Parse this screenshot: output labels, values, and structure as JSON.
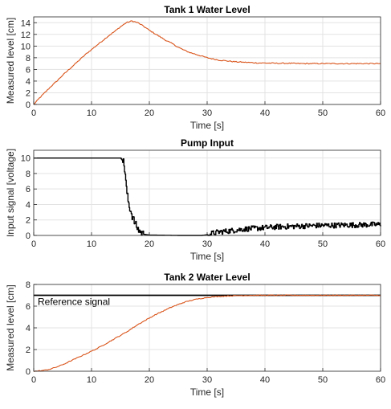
{
  "chart_data": [
    {
      "type": "line",
      "title": "Tank 1 Water Level",
      "xlabel": "Time [s]",
      "ylabel": "Measured level [cm]",
      "xlim": [
        0,
        60
      ],
      "ylim": [
        0,
        15
      ],
      "xticks": [
        0,
        10,
        20,
        30,
        40,
        50,
        60
      ],
      "yticks": [
        0,
        2,
        4,
        6,
        8,
        10,
        12,
        14
      ],
      "grid": true,
      "series": [
        {
          "color": "#d95319",
          "x": [
            0,
            1,
            2,
            3,
            4,
            5,
            6,
            7,
            8,
            9,
            10,
            11,
            12,
            13,
            14,
            15,
            16,
            17,
            18,
            19,
            20,
            21,
            22,
            23,
            24,
            25,
            26,
            27,
            28,
            29,
            30,
            31,
            32,
            33,
            34,
            35,
            36,
            37,
            38,
            39,
            40,
            42,
            44,
            46,
            48,
            50,
            52,
            54,
            56,
            58,
            60
          ],
          "y": [
            0,
            1.1,
            2.1,
            3.1,
            4.0,
            5.0,
            5.9,
            6.8,
            7.7,
            8.6,
            9.4,
            10.2,
            11.0,
            11.8,
            12.5,
            13.3,
            14.0,
            14.3,
            14.0,
            13.4,
            12.7,
            12.1,
            11.5,
            10.9,
            10.4,
            9.8,
            9.3,
            8.9,
            8.6,
            8.3,
            8.0,
            7.8,
            7.6,
            7.5,
            7.4,
            7.3,
            7.25,
            7.2,
            7.15,
            7.1,
            7.1,
            7.05,
            7.05,
            7.0,
            7.0,
            7.0,
            7.0,
            7.0,
            7.0,
            7.0,
            7.0
          ]
        }
      ]
    },
    {
      "type": "line",
      "title": "Pump Input",
      "xlabel": "Time [s]",
      "ylabel": "Input signal [voltage]",
      "xlim": [
        0,
        60
      ],
      "ylim": [
        0,
        11
      ],
      "xticks": [
        0,
        10,
        20,
        30,
        40,
        50,
        60
      ],
      "yticks": [
        0,
        2,
        4,
        6,
        8,
        10
      ],
      "grid": true,
      "series": [
        {
          "color": "#000000",
          "x": [
            0,
            15,
            15.5,
            15.8,
            16.0,
            16.3,
            16.6,
            17.0,
            17.5,
            18,
            18.5,
            19,
            20,
            25,
            29,
            30,
            31,
            32,
            34,
            36,
            38,
            40,
            42,
            44,
            46,
            48,
            50,
            52,
            54,
            56,
            58,
            60
          ],
          "y": [
            10,
            10,
            9.5,
            8,
            6,
            4.5,
            3.5,
            2.5,
            1.5,
            0.8,
            0.4,
            0.15,
            0.05,
            0,
            0,
            0.1,
            0.3,
            0.45,
            0.6,
            0.8,
            0.9,
            1.0,
            1.1,
            1.15,
            1.2,
            1.25,
            1.3,
            1.3,
            1.35,
            1.35,
            1.4,
            1.4
          ]
        }
      ]
    },
    {
      "type": "line",
      "title": "Tank 2 Water Level",
      "xlabel": "Time [s]",
      "ylabel": "Measured level [cm]",
      "xlim": [
        0,
        60
      ],
      "ylim": [
        0,
        8
      ],
      "xticks": [
        0,
        10,
        20,
        30,
        40,
        50,
        60
      ],
      "yticks": [
        0,
        2,
        4,
        6,
        8
      ],
      "grid": true,
      "annotations": [
        "Reference signal"
      ],
      "series": [
        {
          "color": "#000000",
          "x": [
            0,
            60
          ],
          "y": [
            7,
            7
          ]
        },
        {
          "color": "#d95319",
          "x": [
            0,
            1,
            2,
            3,
            4,
            5,
            6,
            7,
            8,
            9,
            10,
            11,
            12,
            13,
            14,
            15,
            16,
            17,
            18,
            19,
            20,
            21,
            22,
            23,
            24,
            25,
            26,
            27,
            28,
            29,
            30,
            32,
            34,
            36,
            38,
            40,
            42,
            44,
            46,
            48,
            50,
            52,
            54,
            56,
            58,
            60
          ],
          "y": [
            0,
            0.03,
            0.1,
            0.22,
            0.4,
            0.6,
            0.85,
            1.1,
            1.35,
            1.6,
            1.85,
            2.1,
            2.4,
            2.7,
            3.0,
            3.3,
            3.6,
            3.95,
            4.3,
            4.6,
            4.9,
            5.2,
            5.45,
            5.7,
            5.95,
            6.15,
            6.35,
            6.5,
            6.62,
            6.72,
            6.8,
            6.9,
            6.95,
            6.98,
            7.0,
            7.0,
            7.0,
            7.0,
            7.0,
            7.0,
            7.0,
            7.0,
            7.0,
            7.0,
            7.0,
            7.0
          ]
        }
      ]
    }
  ]
}
